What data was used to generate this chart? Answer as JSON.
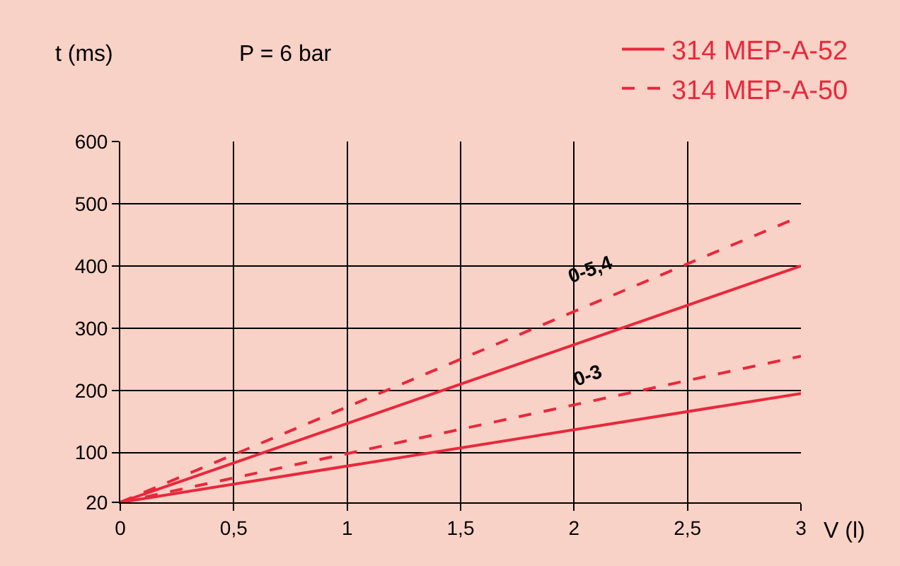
{
  "chart_data": {
    "type": "line",
    "xlabel": "V (l)",
    "ylabel": "t (ms)",
    "x": [
      0,
      3
    ],
    "xlim": [
      0,
      3
    ],
    "xticks": [
      0,
      {
        "value": 0.5,
        "label": "0,5"
      },
      1,
      {
        "value": 1.5,
        "label": "1,5"
      },
      2,
      {
        "value": 2.5,
        "label": "2,5"
      },
      3
    ],
    "ylim": [
      20,
      600
    ],
    "yticks": [
      20,
      100,
      200,
      300,
      400,
      500,
      600
    ],
    "grid": true,
    "legend": "top right",
    "marker": "none",
    "series": [
      {
        "name": "314 MEP-A-52",
        "color": "#e8283c",
        "line_style": "solid",
        "values": [
          20,
          400
        ]
      },
      {
        "color": "#e8283c",
        "line_style": "solid",
        "values": [
          20,
          195
        ]
      },
      {
        "name": "314 MEP-A-50",
        "color": "#e8283c",
        "line_style": "dashed",
        "values": [
          20,
          480
        ]
      },
      {
        "color": "#e8283c",
        "line_style": "dashed",
        "values": [
          20,
          255
        ]
      }
    ],
    "annotations": [
      "P = 6 bar",
      "0-5,4",
      "0-3"
    ]
  }
}
